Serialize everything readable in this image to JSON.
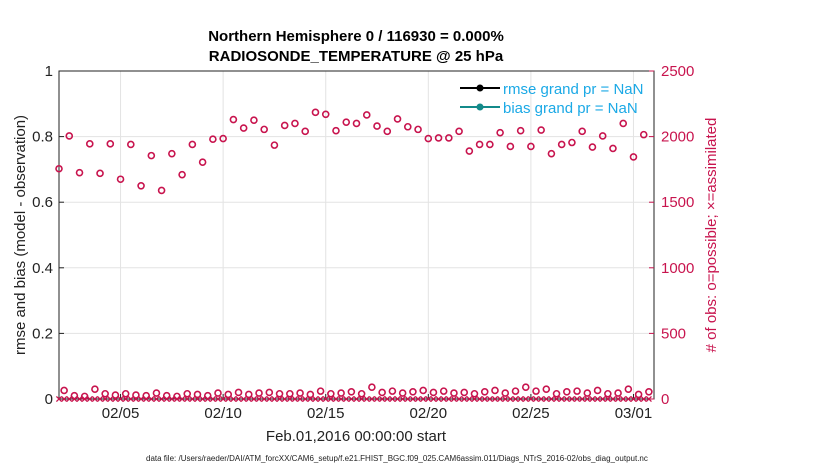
{
  "chart_data": {
    "type": "scatter",
    "title": "Northern Hemisphere 0 / 116930 = 0.000%",
    "subtitle": "RADIOSONDE_TEMPERATURE @ 25 hPa",
    "xlabel": "Feb.01,2016 00:00:00 start",
    "ylabel_left": "rmse and bias (model - observation)",
    "ylabel_right": "# of obs: o=possible; ×=assimilated",
    "footer": "data file: /Users/raeder/DAI/ATM_forcXX/CAM6_setup/f.e21.FHIST_BGC.f09_025.CAM6assim.011/Diags_NTrS_2016-02/obs_diag_output.nc",
    "x_range": [
      1,
      30
    ],
    "x_ticks": [
      {
        "value": 4,
        "label": "02/05"
      },
      {
        "value": 9,
        "label": "02/10"
      },
      {
        "value": 14,
        "label": "02/15"
      },
      {
        "value": 19,
        "label": "02/20"
      },
      {
        "value": 24,
        "label": "02/25"
      },
      {
        "value": 29,
        "label": "03/01"
      }
    ],
    "y_left_range": [
      0,
      1
    ],
    "y_left_ticks": [
      {
        "value": 0,
        "label": "0"
      },
      {
        "value": 0.2,
        "label": "0.2"
      },
      {
        "value": 0.4,
        "label": "0.4"
      },
      {
        "value": 0.6,
        "label": "0.6"
      },
      {
        "value": 0.8,
        "label": "0.8"
      },
      {
        "value": 1,
        "label": "1"
      }
    ],
    "y_right_range": [
      0,
      2500
    ],
    "y_right_ticks": [
      {
        "value": 0,
        "label": "0"
      },
      {
        "value": 500,
        "label": "500"
      },
      {
        "value": 1000,
        "label": "1000"
      },
      {
        "value": 1500,
        "label": "1500"
      },
      {
        "value": 2000,
        "label": "2000"
      },
      {
        "value": 2500,
        "label": "2500"
      }
    ],
    "grid": true,
    "legend_position": "top-right",
    "legend": [
      {
        "label": "rmse grand pr = NaN",
        "color": "#000000"
      },
      {
        "label": "bias grand pr = NaN",
        "color": "#138a8a"
      }
    ],
    "series": [
      {
        "name": "possible (major cycles)",
        "marker": "circle",
        "color": "#c8144e",
        "x": [
          1,
          1.5,
          2,
          2.5,
          3,
          3.5,
          4,
          4.5,
          5,
          5.5,
          6,
          6.5,
          7,
          7.5,
          8,
          8.5,
          9,
          9.5,
          10,
          10.5,
          11,
          11.5,
          12,
          12.5,
          13,
          13.5,
          14,
          14.5,
          15,
          15.5,
          16,
          16.5,
          17,
          17.5,
          18,
          18.5,
          19,
          19.5,
          20,
          20.5,
          21,
          21.5,
          22,
          22.5,
          23,
          23.5,
          24,
          24.5,
          25,
          25.5,
          26,
          26.5,
          27,
          27.5,
          28,
          28.5,
          29,
          29.5
        ],
        "y": [
          1755,
          2005,
          1725,
          1945,
          1720,
          1945,
          1675,
          1940,
          1625,
          1855,
          1590,
          1870,
          1710,
          1940,
          1805,
          1980,
          1985,
          2130,
          2065,
          2125,
          2055,
          1935,
          2085,
          2100,
          2040,
          2185,
          2170,
          2045,
          2110,
          2100,
          2165,
          2080,
          2040,
          2135,
          2075,
          2055,
          1985,
          1990,
          1990,
          2040,
          1890,
          1940,
          1940,
          2030,
          1925,
          2045,
          1925,
          2050,
          1870,
          1940,
          1955,
          2040,
          1920,
          2005,
          1910,
          2100,
          1845,
          2015
        ]
      },
      {
        "name": "possible (minor cycles)",
        "marker": "circle",
        "color": "#c8144e",
        "x": [
          1.25,
          1.75,
          2.25,
          2.75,
          3.25,
          3.75,
          4.25,
          4.75,
          5.25,
          5.75,
          6.25,
          6.75,
          7.25,
          7.75,
          8.25,
          8.75,
          9.25,
          9.75,
          10.25,
          10.75,
          11.25,
          11.75,
          12.25,
          12.75,
          13.25,
          13.75,
          14.25,
          14.75,
          15.25,
          15.75,
          16.25,
          16.75,
          17.25,
          17.75,
          18.25,
          18.75,
          19.25,
          19.75,
          20.25,
          20.75,
          21.25,
          21.75,
          22.25,
          22.75,
          23.25,
          23.75,
          24.25,
          24.75,
          25.25,
          25.75,
          26.25,
          26.75,
          27.25,
          27.75,
          28.25,
          28.75,
          29.25,
          29.75
        ],
        "y": [
          65,
          25,
          20,
          75,
          40,
          30,
          40,
          30,
          25,
          45,
          25,
          20,
          40,
          35,
          25,
          45,
          35,
          50,
          35,
          45,
          50,
          40,
          40,
          45,
          35,
          60,
          40,
          45,
          55,
          40,
          90,
          50,
          60,
          45,
          55,
          65,
          50,
          60,
          45,
          50,
          40,
          55,
          65,
          45,
          60,
          90,
          60,
          75,
          40,
          55,
          60,
          45,
          65,
          40,
          45,
          75,
          35,
          55
        ]
      }
    ]
  }
}
